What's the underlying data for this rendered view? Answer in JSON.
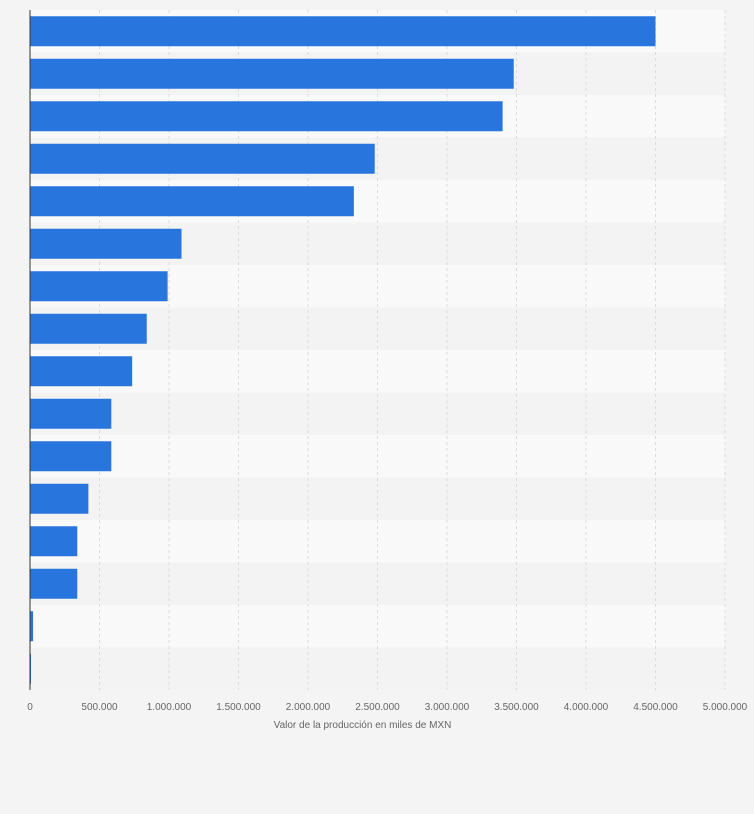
{
  "chart_data": {
    "type": "bar",
    "orientation": "horizontal",
    "categories": [
      "",
      "",
      "",
      "",
      "",
      "",
      "",
      "",
      "",
      "",
      "",
      "",
      "",
      "",
      "",
      ""
    ],
    "values": [
      4500000,
      3480000,
      3400000,
      2480000,
      2330000,
      1090000,
      990000,
      840000,
      735000,
      585000,
      585000,
      420000,
      340000,
      340000,
      22000,
      6000
    ],
    "title": "",
    "xlabel": "Valor de la producción en miles de MXN",
    "ylabel": "",
    "xlim": [
      0,
      5000000
    ],
    "xticks": [
      0,
      500000,
      1000000,
      1500000,
      2000000,
      2500000,
      3000000,
      3500000,
      4000000,
      4500000,
      5000000
    ],
    "xtick_labels": [
      "0",
      "500.000",
      "1.000.000",
      "1.500.000",
      "2.000.000",
      "2.500.000",
      "3.000.000",
      "3.500.000",
      "4.000.000",
      "4.500.000",
      "5.000.000"
    ],
    "grid": true,
    "legend": "none"
  },
  "colors": {
    "bar": "#2876dd",
    "background": "#f4f4f4",
    "band_light": "#f9f9f9",
    "band_dark": "#f3f3f3",
    "grid": "#dcdcdc",
    "axis": "#333333",
    "tick_text": "#666666"
  }
}
